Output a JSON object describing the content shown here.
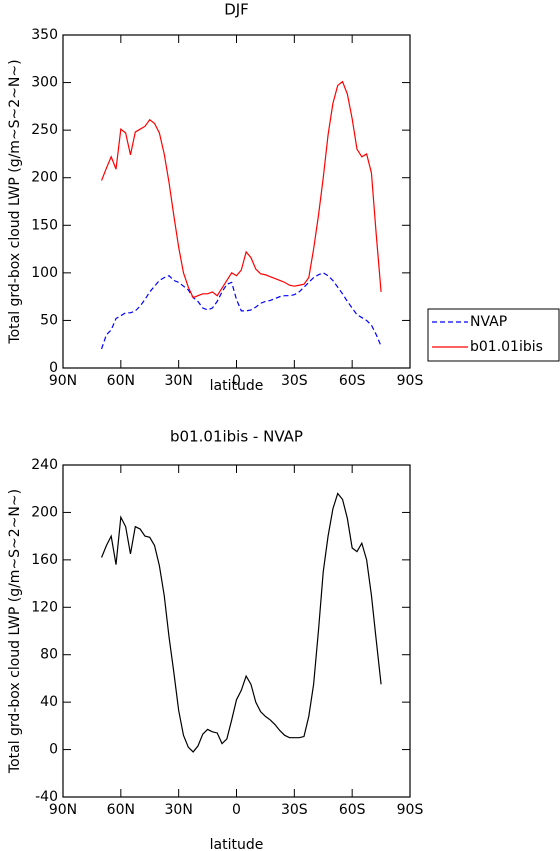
{
  "chart_data": [
    {
      "type": "line",
      "title": "DJF",
      "xlabel": "latitude",
      "ylabel": "Total grd-box cloud LWP (g/m~S~2~N~)",
      "x": [
        70,
        67.5,
        65,
        62.5,
        60,
        57.5,
        55,
        52.5,
        50,
        47.5,
        45,
        42.5,
        40,
        37.5,
        35,
        32.5,
        30,
        27.5,
        25,
        22.5,
        20,
        17.5,
        15,
        12.5,
        10,
        7.5,
        5,
        2.5,
        0,
        -2.5,
        -5,
        -7.5,
        -10,
        -12.5,
        -15,
        -17.5,
        -20,
        -22.5,
        -25,
        -27.5,
        -30,
        -32.5,
        -35,
        -37.5,
        -40,
        -42.5,
        -45,
        -47.5,
        -50,
        -52.5,
        -55,
        -57.5,
        -60,
        -62.5,
        -65,
        -67.5,
        -70,
        -72.5,
        -75
      ],
      "series": [
        {
          "name": "NVAP",
          "color": "#0000ff",
          "line_style": "dashed",
          "values": [
            20,
            35,
            40,
            52,
            55,
            58,
            58,
            60,
            65,
            72,
            80,
            86,
            92,
            95,
            97,
            92,
            90,
            86,
            82,
            74,
            70,
            63,
            61,
            63,
            70,
            80,
            88,
            90,
            72,
            60,
            60,
            61,
            64,
            68,
            70,
            71,
            73,
            75,
            76,
            76,
            77,
            80,
            85,
            90,
            95,
            98,
            100,
            97,
            92,
            85,
            78,
            70,
            63,
            56,
            53,
            50,
            45,
            35,
            23
          ]
        },
        {
          "name": "b01.01ibis",
          "color": "#ff0000",
          "line_style": "solid",
          "values": [
            197,
            210,
            222,
            209,
            251,
            247,
            224,
            248,
            251,
            254,
            261,
            257,
            247,
            225,
            195,
            160,
            127,
            100,
            85,
            74,
            76,
            78,
            78,
            80,
            76,
            84,
            92,
            100,
            97,
            103,
            122,
            116,
            104,
            99,
            98,
            96,
            94,
            92,
            90,
            87,
            86,
            87,
            88,
            95,
            125,
            160,
            200,
            245,
            278,
            297,
            301,
            288,
            262,
            230,
            222,
            225,
            205,
            140,
            80
          ]
        }
      ],
      "xlim": [
        90,
        -90
      ],
      "xticks": [
        {
          "value": 90,
          "label": "90N"
        },
        {
          "value": 60,
          "label": "60N"
        },
        {
          "value": 30,
          "label": "30N"
        },
        0,
        {
          "value": -30,
          "label": "30S"
        },
        {
          "value": -60,
          "label": "60S"
        },
        {
          "value": -90,
          "label": "90S"
        }
      ],
      "ylim": [
        0,
        350
      ],
      "yticks": [
        0,
        50,
        100,
        150,
        200,
        250,
        300,
        350
      ],
      "legend": "right"
    },
    {
      "type": "line",
      "title": "b01.01ibis - NVAP",
      "xlabel": "latitude",
      "ylabel": "Total grd-box cloud LWP (g/m~S~2~N~)",
      "x": [
        70,
        67.5,
        65,
        62.5,
        60,
        57.5,
        55,
        52.5,
        50,
        47.5,
        45,
        42.5,
        40,
        37.5,
        35,
        32.5,
        30,
        27.5,
        25,
        22.5,
        20,
        17.5,
        15,
        12.5,
        10,
        7.5,
        5,
        2.5,
        0,
        -2.5,
        -5,
        -7.5,
        -10,
        -12.5,
        -15,
        -17.5,
        -20,
        -22.5,
        -25,
        -27.5,
        -30,
        -32.5,
        -35,
        -37.5,
        -40,
        -42.5,
        -45,
        -47.5,
        -50,
        -52.5,
        -55,
        -57.5,
        -60,
        -62.5,
        -65,
        -67.5,
        -70,
        -72.5,
        -75
      ],
      "series": [
        {
          "color": "#000000",
          "line_style": "solid",
          "values": [
            162,
            172,
            180,
            156,
            196,
            188,
            165,
            188,
            186,
            180,
            179,
            172,
            155,
            130,
            95,
            65,
            33,
            12,
            2,
            -2,
            3,
            13,
            17,
            15,
            14,
            5,
            9,
            25,
            42,
            50,
            62,
            55,
            40,
            32,
            28,
            25,
            21,
            16,
            12,
            10,
            10,
            10,
            11,
            28,
            55,
            100,
            150,
            180,
            203,
            216,
            211,
            195,
            170,
            167,
            174,
            160,
            130,
            92,
            55
          ]
        }
      ],
      "xlim": [
        90,
        -90
      ],
      "xticks": [
        {
          "value": 90,
          "label": "90N"
        },
        {
          "value": 60,
          "label": "60N"
        },
        {
          "value": 30,
          "label": "30N"
        },
        0,
        {
          "value": -30,
          "label": "30S"
        },
        {
          "value": -60,
          "label": "60S"
        },
        {
          "value": -90,
          "label": "90S"
        }
      ],
      "ylim": [
        -40,
        240
      ],
      "yticks": [
        -40,
        0,
        40,
        80,
        120,
        160,
        200,
        240
      ]
    }
  ]
}
